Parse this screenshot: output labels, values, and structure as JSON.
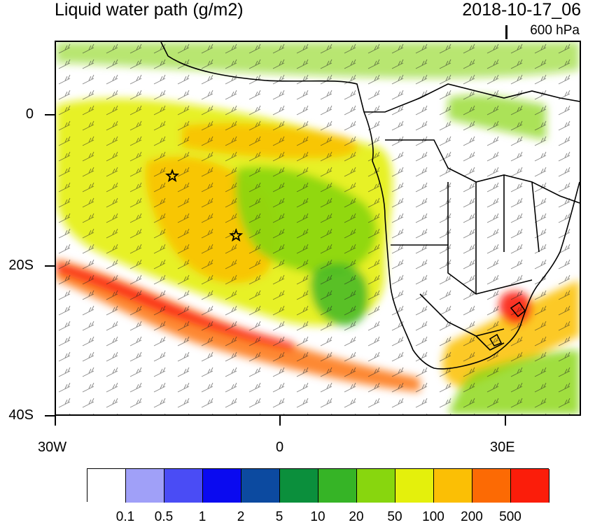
{
  "title": "Liquid water path (g/m2)",
  "datetime": "2018-10-17_06",
  "level": "600 hPa",
  "axes": {
    "y_labels": [
      "0",
      "20S",
      "40S"
    ],
    "x_labels": [
      "30W",
      "0",
      "30E"
    ]
  },
  "markers": [
    {
      "name": "star-marker-1",
      "lon": -14.5,
      "lat": -8
    },
    {
      "name": "star-marker-2",
      "lon": -6,
      "lat": -16
    }
  ],
  "colorbar": {
    "colors": [
      "#ffffff",
      "#a0a0f8",
      "#4a4cf5",
      "#0a0af0",
      "#0c4aa0",
      "#0b8f3c",
      "#36b426",
      "#88d60e",
      "#e4f00c",
      "#fbbf05",
      "#fc6a04",
      "#fb1d0a"
    ],
    "labels": [
      "0.1",
      "0.5",
      "1",
      "2",
      "5",
      "10",
      "20",
      "50",
      "100",
      "200",
      "500"
    ]
  }
}
